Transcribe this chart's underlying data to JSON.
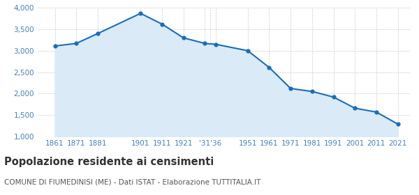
{
  "years": [
    1861,
    1871,
    1881,
    1901,
    1911,
    1921,
    1931,
    1936,
    1951,
    1961,
    1971,
    1981,
    1991,
    2001,
    2011,
    2021
  ],
  "population": [
    3110,
    3170,
    3400,
    3870,
    3620,
    3300,
    3170,
    3150,
    3000,
    2610,
    2120,
    2050,
    1920,
    1660,
    1570,
    1290
  ],
  "line_color": "#1b6eb5",
  "fill_color": "#daeaf7",
  "marker_color": "#1b6eb5",
  "bg_color": "#ffffff",
  "grid_color": "#cccccc",
  "title": "Popolazione residente ai censimenti",
  "subtitle": "COMUNE DI FIUMEDINISI (ME) - Dati ISTAT - Elaborazione TUTTITALIA.IT",
  "title_fontsize": 10.5,
  "subtitle_fontsize": 7.5,
  "ylim": [
    1000,
    4000
  ],
  "yticks": [
    1000,
    1500,
    2000,
    2500,
    3000,
    3500,
    4000
  ],
  "tick_label_color": "#4a7eb5",
  "title_color": "#333333",
  "subtitle_color": "#555555"
}
